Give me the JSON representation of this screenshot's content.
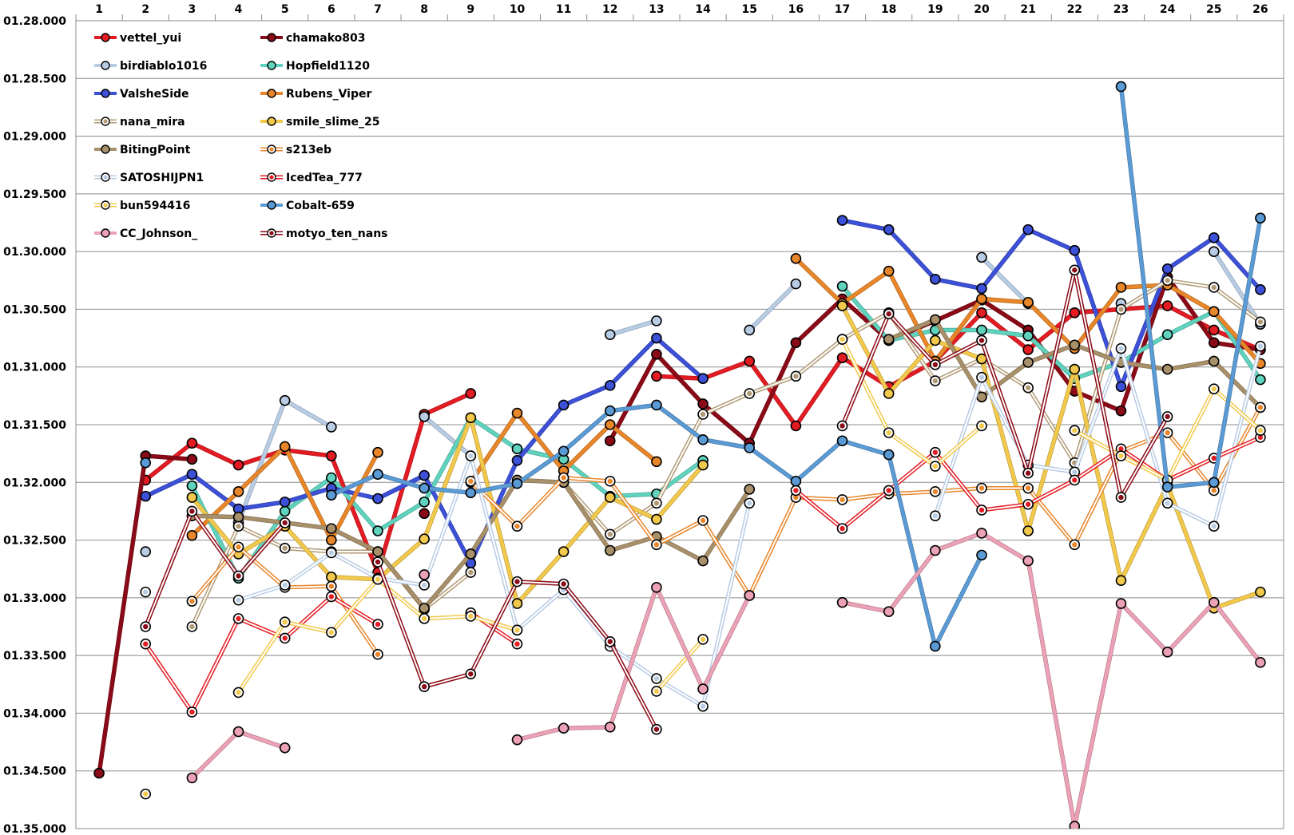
{
  "chart_data": {
    "type": "line",
    "title": "",
    "xlabel": "",
    "ylabel": "",
    "x": [
      1,
      2,
      3,
      4,
      5,
      6,
      7,
      8,
      9,
      10,
      11,
      12,
      13,
      14,
      15,
      16,
      17,
      18,
      19,
      20,
      21,
      22,
      23,
      24,
      25,
      26
    ],
    "y_ticks": [
      "01.28.000",
      "01.28.500",
      "01.29.000",
      "01.29.500",
      "01.30.000",
      "01.30.500",
      "01.31.000",
      "01.31.500",
      "01.32.000",
      "01.32.500",
      "01.33.000",
      "01.33.500",
      "01.34.000",
      "01.34.500",
      "01.35.000"
    ],
    "ylim_seconds": [
      88.0,
      95.0
    ],
    "y_inverted": false,
    "grid": "horizontal",
    "legend_position": "top-left",
    "series": [
      {
        "name": "vettel_yui",
        "color": "#e31b23",
        "width": 4,
        "style": "solid",
        "values": [
          null,
          91.98,
          91.66,
          91.85,
          91.72,
          91.77,
          92.78,
          91.41,
          91.23,
          null,
          null,
          null,
          91.08,
          91.1,
          90.95,
          91.51,
          90.92,
          91.17,
          90.95,
          90.53,
          90.85,
          90.53,
          90.5,
          90.47,
          90.68,
          90.85
        ]
      },
      {
        "name": "chamako803",
        "color": "#8b0a17",
        "width": 4,
        "style": "solid",
        "values": [
          94.52,
          91.77,
          91.8,
          null,
          null,
          null,
          null,
          92.27,
          null,
          null,
          null,
          91.64,
          90.89,
          91.32,
          91.66,
          90.79,
          90.41,
          90.77,
          90.6,
          90.42,
          90.68,
          91.21,
          91.38,
          90.22,
          90.79,
          90.85
        ]
      },
      {
        "name": "birdiablo1016",
        "color": "#b8cce4",
        "width": 4,
        "style": "solid",
        "values": [
          null,
          92.6,
          null,
          92.35,
          91.29,
          91.52,
          null,
          91.43,
          91.77,
          null,
          null,
          90.72,
          90.6,
          null,
          90.68,
          90.28,
          null,
          null,
          null,
          90.05,
          90.45,
          null,
          90.45,
          null,
          90.0,
          90.63
        ]
      },
      {
        "name": "Hopfield1120",
        "color": "#5fd3bd",
        "width": 4,
        "style": "solid",
        "values": [
          null,
          null,
          92.03,
          92.83,
          92.25,
          91.96,
          92.42,
          92.17,
          91.44,
          91.71,
          91.8,
          92.12,
          92.1,
          91.81,
          null,
          null,
          90.3,
          90.77,
          90.68,
          90.68,
          90.73,
          91.1,
          90.96,
          90.72,
          90.52,
          91.11
        ]
      },
      {
        "name": "ValsheSide",
        "color": "#3c50d8",
        "width": 4,
        "style": "solid",
        "values": [
          null,
          92.12,
          91.93,
          92.23,
          92.17,
          92.05,
          92.14,
          91.94,
          92.7,
          91.81,
          91.33,
          91.16,
          90.75,
          91.1,
          null,
          null,
          89.73,
          89.81,
          90.24,
          90.32,
          89.81,
          89.99,
          91.17,
          90.15,
          89.88,
          90.33
        ]
      },
      {
        "name": "Rubens_Viper",
        "color": "#e8862a",
        "width": 4,
        "style": "solid",
        "values": [
          null,
          null,
          92.46,
          92.08,
          91.69,
          92.5,
          91.74,
          null,
          92.0,
          91.4,
          91.9,
          91.5,
          91.82,
          null,
          null,
          90.06,
          90.45,
          90.17,
          90.95,
          90.41,
          90.44,
          90.84,
          90.31,
          90.29,
          90.52,
          90.97
        ]
      },
      {
        "name": "nana_mira",
        "color": "#b09a75",
        "width": 2,
        "style": "double",
        "values": [
          null,
          null,
          93.25,
          92.38,
          92.57,
          92.6,
          92.6,
          93.1,
          92.78,
          null,
          92.0,
          92.45,
          92.18,
          91.41,
          91.23,
          91.08,
          90.76,
          90.53,
          91.12,
          90.93,
          91.18,
          91.83,
          90.5,
          90.25,
          90.31,
          90.61
        ]
      },
      {
        "name": "smile_slime_25",
        "color": "#f2c94c",
        "width": 4,
        "style": "solid",
        "values": [
          null,
          null,
          92.13,
          92.62,
          92.38,
          92.82,
          92.84,
          92.49,
          91.44,
          93.05,
          92.6,
          92.13,
          92.32,
          91.85,
          null,
          null,
          90.47,
          91.23,
          90.77,
          90.93,
          92.42,
          91.02,
          92.85,
          92.02,
          93.09,
          92.95
        ]
      },
      {
        "name": "BitingPoint",
        "color": "#a8906a",
        "width": 4,
        "style": "solid",
        "values": [
          null,
          null,
          92.29,
          92.3,
          92.35,
          92.4,
          92.6,
          93.09,
          92.62,
          91.98,
          92.0,
          92.59,
          92.47,
          92.68,
          92.06,
          null,
          null,
          90.76,
          90.59,
          91.26,
          90.96,
          90.81,
          90.96,
          91.02,
          90.95,
          91.35
        ]
      },
      {
        "name": "s213eb",
        "color": "#e8862a",
        "width": 2,
        "style": "double",
        "values": [
          null,
          null,
          93.03,
          92.56,
          92.91,
          92.9,
          93.49,
          null,
          91.99,
          92.38,
          91.96,
          91.99,
          92.54,
          92.33,
          92.98,
          92.13,
          92.15,
          92.1,
          92.08,
          92.05,
          92.05,
          92.54,
          91.73,
          91.57,
          92.07,
          91.35
        ]
      },
      {
        "name": "SATOSHIJPN1",
        "color": "#b8cce4",
        "width": 2,
        "style": "double",
        "values": [
          null,
          92.95,
          null,
          93.02,
          92.89,
          92.61,
          92.83,
          92.89,
          91.77,
          93.28,
          92.93,
          93.42,
          93.7,
          93.94,
          92.18,
          null,
          null,
          null,
          92.29,
          91.09,
          91.85,
          91.91,
          90.84,
          92.18,
          92.38,
          90.82
        ]
      },
      {
        "name": "IcedTea_777",
        "color": "#e31b23",
        "width": 2,
        "style": "double",
        "values": [
          null,
          93.4,
          93.99,
          93.18,
          93.35,
          92.99,
          93.23,
          null,
          93.13,
          93.4,
          null,
          null,
          null,
          null,
          null,
          92.07,
          92.4,
          92.07,
          91.74,
          92.24,
          92.19,
          91.98,
          91.71,
          91.98,
          91.79,
          91.61
        ]
      },
      {
        "name": "bun594416",
        "color": "#f2c94c",
        "width": 2,
        "style": "double",
        "values": [
          null,
          94.7,
          null,
          93.82,
          93.21,
          93.3,
          92.84,
          93.18,
          93.16,
          93.28,
          null,
          null,
          93.81,
          93.36,
          null,
          null,
          90.76,
          91.57,
          91.86,
          91.51,
          null,
          91.55,
          91.77,
          91.98,
          91.19,
          91.55
        ]
      },
      {
        "name": "Cobalt-659",
        "color": "#5b9bd5",
        "width": 4,
        "style": "solid",
        "values": [
          null,
          91.83,
          null,
          null,
          null,
          92.11,
          91.93,
          92.05,
          92.09,
          92.01,
          91.73,
          91.38,
          91.33,
          91.63,
          91.7,
          91.99,
          91.64,
          91.76,
          93.42,
          92.63,
          null,
          null,
          88.57,
          92.04,
          92.0,
          89.71
        ]
      },
      {
        "name": "CC_Johnson_",
        "color": "#eba1b6",
        "width": 4,
        "style": "solid",
        "values": [
          null,
          null,
          94.56,
          94.16,
          94.3,
          null,
          null,
          92.8,
          null,
          94.23,
          94.13,
          94.12,
          92.91,
          93.79,
          92.98,
          null,
          93.04,
          93.12,
          92.59,
          92.44,
          92.68,
          94.98,
          93.05,
          93.47,
          93.04,
          93.56
        ]
      },
      {
        "name": "motyo_ten_nans",
        "color": "#8b0a17",
        "width": 2,
        "style": "double",
        "values": [
          null,
          93.25,
          92.25,
          92.81,
          92.35,
          null,
          92.69,
          93.77,
          93.66,
          92.86,
          92.88,
          93.38,
          94.14,
          null,
          null,
          null,
          91.51,
          90.54,
          90.98,
          90.77,
          91.92,
          90.16,
          92.13,
          91.43,
          null,
          null
        ]
      }
    ]
  }
}
